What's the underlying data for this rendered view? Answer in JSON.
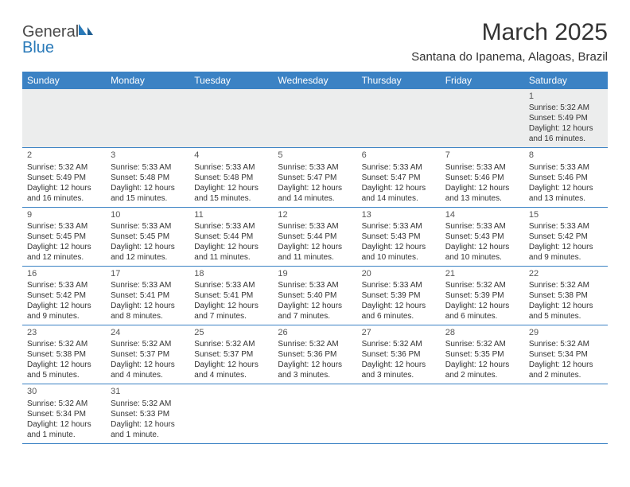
{
  "brand": {
    "part1": "General",
    "part2": "Blue"
  },
  "title": "March 2025",
  "subtitle": "Santana do Ipanema, Alagoas, Brazil",
  "colors": {
    "header_bg": "#3b82c4",
    "header_text": "#ffffff",
    "rule": "#3b82c4",
    "empty_bg": "#eceded",
    "text": "#333333",
    "brand_gray": "#4a4a4a",
    "brand_blue": "#2a7ab9"
  },
  "dayNames": [
    "Sunday",
    "Monday",
    "Tuesday",
    "Wednesday",
    "Thursday",
    "Friday",
    "Saturday"
  ],
  "weeks": [
    [
      {
        "blank": true
      },
      {
        "blank": true
      },
      {
        "blank": true
      },
      {
        "blank": true
      },
      {
        "blank": true
      },
      {
        "blank": true
      },
      {
        "n": "1",
        "sr": "Sunrise: 5:32 AM",
        "ss": "Sunset: 5:49 PM",
        "d1": "Daylight: 12 hours",
        "d2": "and 16 minutes."
      }
    ],
    [
      {
        "n": "2",
        "sr": "Sunrise: 5:32 AM",
        "ss": "Sunset: 5:49 PM",
        "d1": "Daylight: 12 hours",
        "d2": "and 16 minutes."
      },
      {
        "n": "3",
        "sr": "Sunrise: 5:33 AM",
        "ss": "Sunset: 5:48 PM",
        "d1": "Daylight: 12 hours",
        "d2": "and 15 minutes."
      },
      {
        "n": "4",
        "sr": "Sunrise: 5:33 AM",
        "ss": "Sunset: 5:48 PM",
        "d1": "Daylight: 12 hours",
        "d2": "and 15 minutes."
      },
      {
        "n": "5",
        "sr": "Sunrise: 5:33 AM",
        "ss": "Sunset: 5:47 PM",
        "d1": "Daylight: 12 hours",
        "d2": "and 14 minutes."
      },
      {
        "n": "6",
        "sr": "Sunrise: 5:33 AM",
        "ss": "Sunset: 5:47 PM",
        "d1": "Daylight: 12 hours",
        "d2": "and 14 minutes."
      },
      {
        "n": "7",
        "sr": "Sunrise: 5:33 AM",
        "ss": "Sunset: 5:46 PM",
        "d1": "Daylight: 12 hours",
        "d2": "and 13 minutes."
      },
      {
        "n": "8",
        "sr": "Sunrise: 5:33 AM",
        "ss": "Sunset: 5:46 PM",
        "d1": "Daylight: 12 hours",
        "d2": "and 13 minutes."
      }
    ],
    [
      {
        "n": "9",
        "sr": "Sunrise: 5:33 AM",
        "ss": "Sunset: 5:45 PM",
        "d1": "Daylight: 12 hours",
        "d2": "and 12 minutes."
      },
      {
        "n": "10",
        "sr": "Sunrise: 5:33 AM",
        "ss": "Sunset: 5:45 PM",
        "d1": "Daylight: 12 hours",
        "d2": "and 12 minutes."
      },
      {
        "n": "11",
        "sr": "Sunrise: 5:33 AM",
        "ss": "Sunset: 5:44 PM",
        "d1": "Daylight: 12 hours",
        "d2": "and 11 minutes."
      },
      {
        "n": "12",
        "sr": "Sunrise: 5:33 AM",
        "ss": "Sunset: 5:44 PM",
        "d1": "Daylight: 12 hours",
        "d2": "and 11 minutes."
      },
      {
        "n": "13",
        "sr": "Sunrise: 5:33 AM",
        "ss": "Sunset: 5:43 PM",
        "d1": "Daylight: 12 hours",
        "d2": "and 10 minutes."
      },
      {
        "n": "14",
        "sr": "Sunrise: 5:33 AM",
        "ss": "Sunset: 5:43 PM",
        "d1": "Daylight: 12 hours",
        "d2": "and 10 minutes."
      },
      {
        "n": "15",
        "sr": "Sunrise: 5:33 AM",
        "ss": "Sunset: 5:42 PM",
        "d1": "Daylight: 12 hours",
        "d2": "and 9 minutes."
      }
    ],
    [
      {
        "n": "16",
        "sr": "Sunrise: 5:33 AM",
        "ss": "Sunset: 5:42 PM",
        "d1": "Daylight: 12 hours",
        "d2": "and 9 minutes."
      },
      {
        "n": "17",
        "sr": "Sunrise: 5:33 AM",
        "ss": "Sunset: 5:41 PM",
        "d1": "Daylight: 12 hours",
        "d2": "and 8 minutes."
      },
      {
        "n": "18",
        "sr": "Sunrise: 5:33 AM",
        "ss": "Sunset: 5:41 PM",
        "d1": "Daylight: 12 hours",
        "d2": "and 7 minutes."
      },
      {
        "n": "19",
        "sr": "Sunrise: 5:33 AM",
        "ss": "Sunset: 5:40 PM",
        "d1": "Daylight: 12 hours",
        "d2": "and 7 minutes."
      },
      {
        "n": "20",
        "sr": "Sunrise: 5:33 AM",
        "ss": "Sunset: 5:39 PM",
        "d1": "Daylight: 12 hours",
        "d2": "and 6 minutes."
      },
      {
        "n": "21",
        "sr": "Sunrise: 5:32 AM",
        "ss": "Sunset: 5:39 PM",
        "d1": "Daylight: 12 hours",
        "d2": "and 6 minutes."
      },
      {
        "n": "22",
        "sr": "Sunrise: 5:32 AM",
        "ss": "Sunset: 5:38 PM",
        "d1": "Daylight: 12 hours",
        "d2": "and 5 minutes."
      }
    ],
    [
      {
        "n": "23",
        "sr": "Sunrise: 5:32 AM",
        "ss": "Sunset: 5:38 PM",
        "d1": "Daylight: 12 hours",
        "d2": "and 5 minutes."
      },
      {
        "n": "24",
        "sr": "Sunrise: 5:32 AM",
        "ss": "Sunset: 5:37 PM",
        "d1": "Daylight: 12 hours",
        "d2": "and 4 minutes."
      },
      {
        "n": "25",
        "sr": "Sunrise: 5:32 AM",
        "ss": "Sunset: 5:37 PM",
        "d1": "Daylight: 12 hours",
        "d2": "and 4 minutes."
      },
      {
        "n": "26",
        "sr": "Sunrise: 5:32 AM",
        "ss": "Sunset: 5:36 PM",
        "d1": "Daylight: 12 hours",
        "d2": "and 3 minutes."
      },
      {
        "n": "27",
        "sr": "Sunrise: 5:32 AM",
        "ss": "Sunset: 5:36 PM",
        "d1": "Daylight: 12 hours",
        "d2": "and 3 minutes."
      },
      {
        "n": "28",
        "sr": "Sunrise: 5:32 AM",
        "ss": "Sunset: 5:35 PM",
        "d1": "Daylight: 12 hours",
        "d2": "and 2 minutes."
      },
      {
        "n": "29",
        "sr": "Sunrise: 5:32 AM",
        "ss": "Sunset: 5:34 PM",
        "d1": "Daylight: 12 hours",
        "d2": "and 2 minutes."
      }
    ],
    [
      {
        "n": "30",
        "sr": "Sunrise: 5:32 AM",
        "ss": "Sunset: 5:34 PM",
        "d1": "Daylight: 12 hours",
        "d2": "and 1 minute."
      },
      {
        "n": "31",
        "sr": "Sunrise: 5:32 AM",
        "ss": "Sunset: 5:33 PM",
        "d1": "Daylight: 12 hours",
        "d2": "and 1 minute."
      },
      {
        "blank": true
      },
      {
        "blank": true
      },
      {
        "blank": true
      },
      {
        "blank": true
      },
      {
        "blank": true
      }
    ]
  ]
}
